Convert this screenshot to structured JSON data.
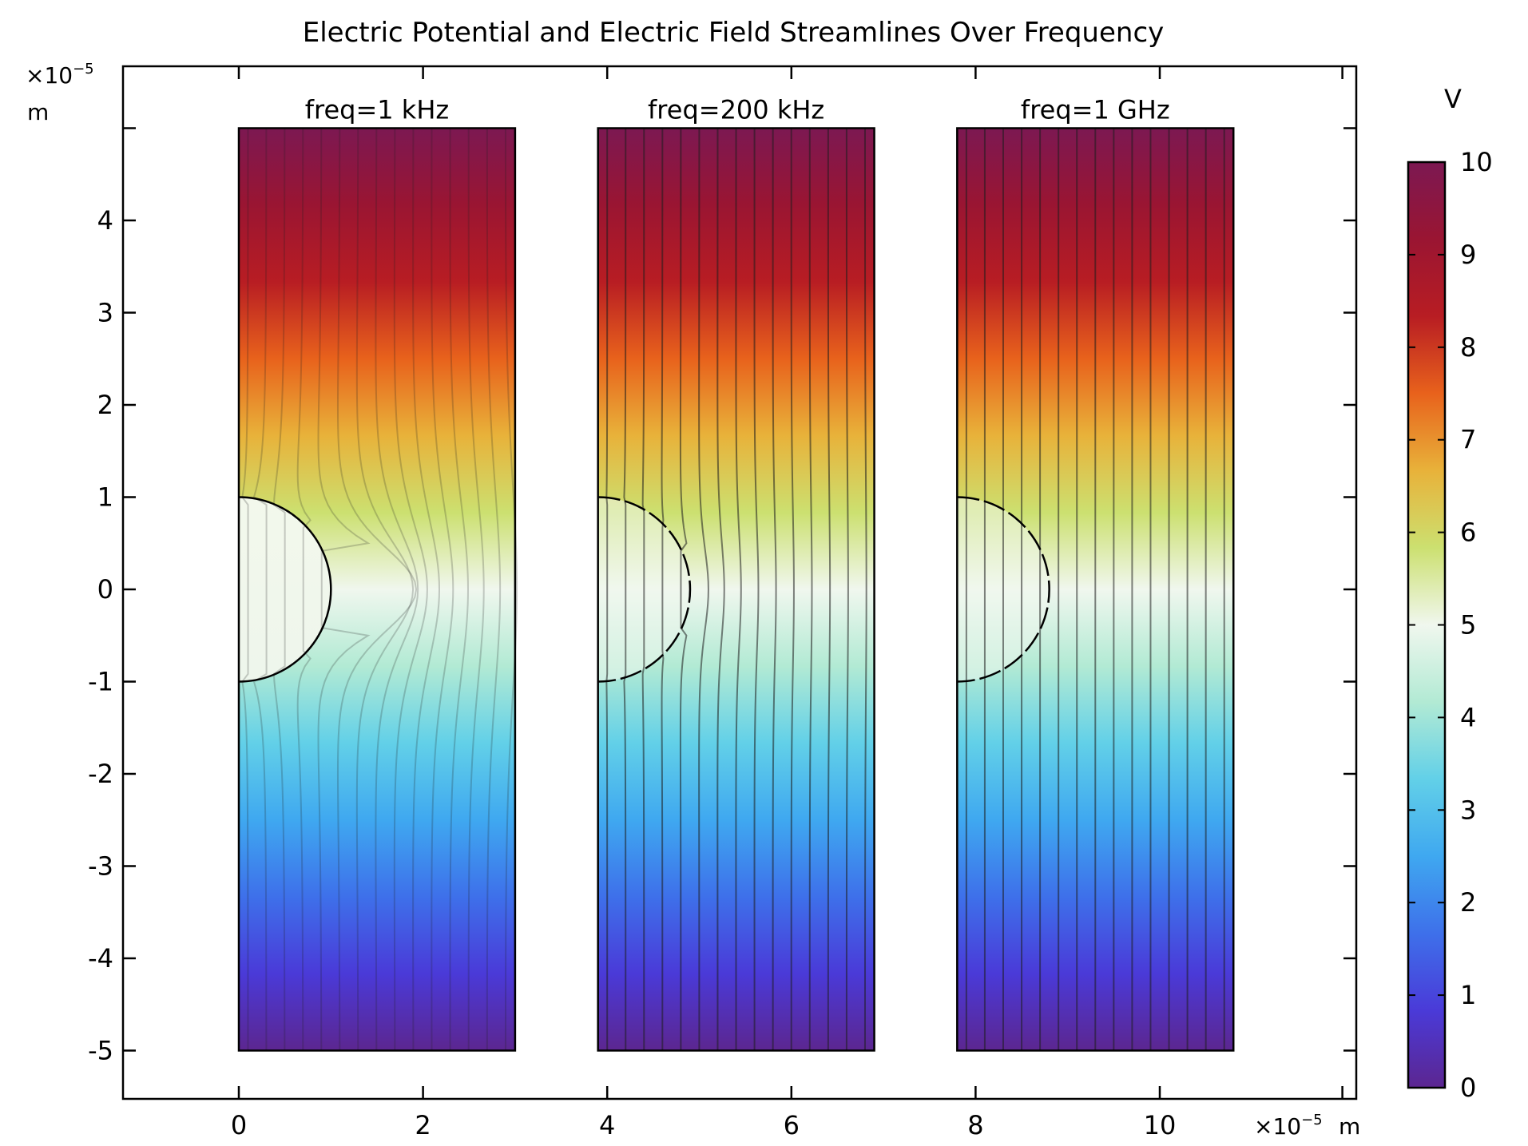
{
  "chart_data": {
    "type": "heatmap",
    "title": "Electric Potential and Electric Field Streamlines Over Frequency",
    "x_axis": {
      "unit_label": "m",
      "scale_label": "×10",
      "scale_exp": "−5",
      "ticks": [
        "0",
        "2",
        "4",
        "6",
        "8",
        "10"
      ],
      "tick_values": [
        0,
        2,
        4,
        6,
        8,
        10
      ],
      "range": [
        -1.27,
        12.0
      ]
    },
    "y_axis": {
      "unit_label": "m",
      "scale_label": "×10",
      "scale_exp": "−5",
      "ticks": [
        "4",
        "3",
        "2",
        "1",
        "0",
        "-1",
        "-2",
        "-3",
        "-4",
        "-5"
      ],
      "tick_values": [
        4,
        3,
        2,
        1,
        0,
        -1,
        -2,
        -3,
        -4,
        -5
      ],
      "range": [
        -5.5,
        5.7
      ]
    },
    "colorbar": {
      "unit": "V",
      "ticks": [
        "10",
        "9",
        "8",
        "7",
        "6",
        "5",
        "4",
        "3",
        "2",
        "1",
        "0"
      ],
      "tick_values": [
        10,
        9,
        8,
        7,
        6,
        5,
        4,
        3,
        2,
        1,
        0
      ],
      "range": [
        0,
        10
      ],
      "colors": [
        "#5c2690",
        "#4a3ad8",
        "#3e70ea",
        "#3fa8f0",
        "#62d0e8",
        "#b2ead4",
        "#f0f7ee",
        "#cce070",
        "#e8b23a",
        "#e8621c",
        "#b81d23",
        "#9a1532",
        "#7c1852"
      ]
    },
    "panels": [
      {
        "label": "freq=1 kHz",
        "x_range": [
          0,
          3
        ],
        "y_range": [
          -5,
          5
        ],
        "sphere_radius": 1,
        "sphere_potential": 5.0,
        "field_distortion": 1.0,
        "boundary": "solid"
      },
      {
        "label": "freq=200 kHz",
        "x_range": [
          3.9,
          6.9
        ],
        "y_range": [
          -5,
          5
        ],
        "sphere_radius": 1,
        "sphere_potential": 5.0,
        "field_distortion": 0.12,
        "boundary": "dashed"
      },
      {
        "label": "freq=1 GHz",
        "x_range": [
          7.8,
          10.8
        ],
        "y_range": [
          -5,
          5
        ],
        "sphere_radius": 1,
        "sphere_potential": 5.0,
        "field_distortion": 0.0,
        "boundary": "dashed"
      }
    ]
  }
}
